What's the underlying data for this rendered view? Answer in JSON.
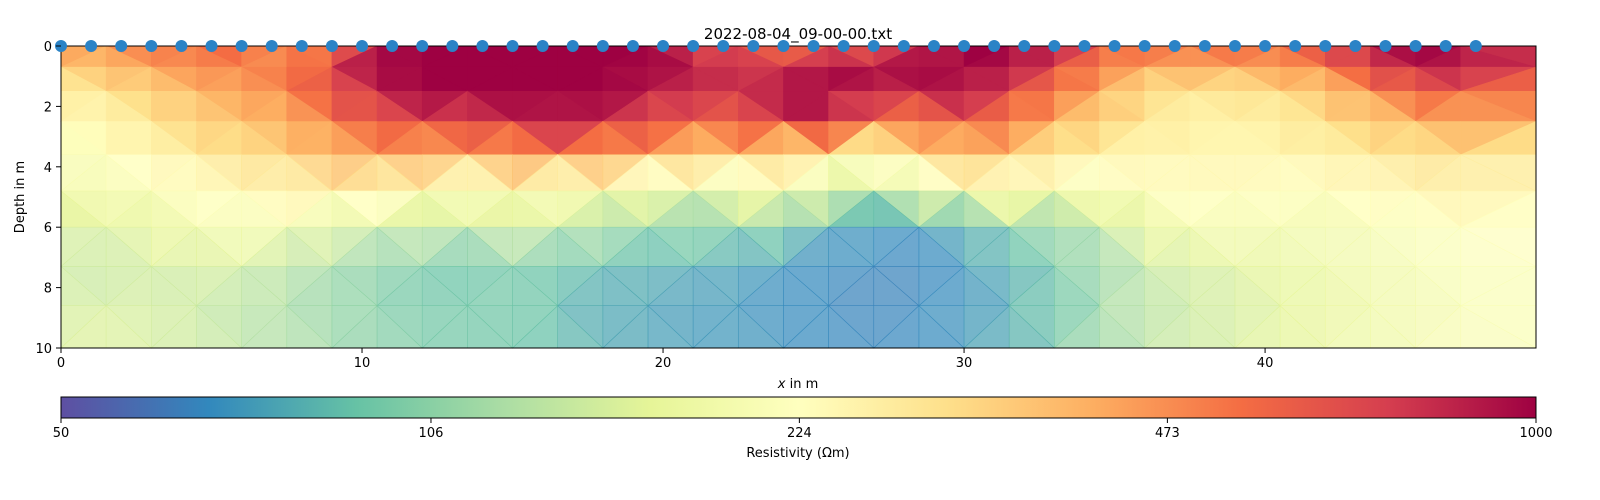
{
  "chart_data": {
    "type": "heatmap",
    "title": "2022-08-04_09-00-00.txt",
    "xlabel_italic": "x",
    "xlabel_rest": " in m",
    "ylabel": "Depth in m",
    "xlim": [
      0,
      49
    ],
    "ylim": [
      0,
      10
    ],
    "x_ticks": [
      0,
      10,
      20,
      30,
      40
    ],
    "y_ticks": [
      0,
      2,
      4,
      6,
      8,
      10
    ],
    "y_inverted": true,
    "electrodes": {
      "count": 48,
      "spacing": 1,
      "x_start": 0,
      "color": "#2b83c6"
    },
    "colorbar": {
      "label": "Resistivity (Ωm)",
      "scale": "log",
      "range": [
        50,
        1000
      ],
      "ticks": [
        50,
        106,
        224,
        473,
        1000
      ],
      "colormap": "Spectral_r",
      "stops": [
        "#5e4fa2",
        "#3288bd",
        "#66c2a5",
        "#abdda4",
        "#e6f598",
        "#ffffbf",
        "#fee08b",
        "#fdae61",
        "#f46d43",
        "#d53e4f",
        "#9e0142"
      ]
    },
    "depth_rows": [
      0,
      0.7,
      1.5,
      2.5,
      3.6,
      4.8,
      6.0,
      7.3,
      8.6,
      10.0
    ],
    "x_columns": [
      0,
      1.5,
      3,
      4.5,
      6,
      7.5,
      9,
      10.5,
      12,
      13.5,
      15,
      16.5,
      18,
      19.5,
      21,
      22.5,
      24,
      25.5,
      27,
      28.5,
      30,
      31.5,
      33,
      34.5,
      36,
      37.5,
      39,
      40.5,
      42,
      43.5,
      45,
      46.5,
      49
    ],
    "resistivity_grid": [
      [
        450,
        480,
        520,
        560,
        600,
        420,
        500,
        900,
        1000,
        1000,
        1000,
        1000,
        1000,
        1000,
        700,
        600,
        520,
        560,
        620,
        750,
        1000,
        1000,
        900,
        650,
        520,
        600,
        550,
        580,
        700,
        900,
        1000,
        1000,
        750
      ],
      [
        330,
        370,
        420,
        480,
        500,
        520,
        700,
        1000,
        1000,
        1000,
        1000,
        1000,
        1000,
        950,
        900,
        780,
        800,
        900,
        950,
        1000,
        1000,
        900,
        700,
        480,
        420,
        400,
        420,
        440,
        520,
        700,
        900,
        850,
        700
      ],
      [
        260,
        290,
        330,
        380,
        430,
        480,
        620,
        850,
        1000,
        1000,
        1000,
        1000,
        1000,
        900,
        780,
        750,
        900,
        1000,
        800,
        850,
        900,
        700,
        520,
        400,
        300,
        280,
        290,
        300,
        350,
        450,
        600,
        620,
        500
      ],
      [
        225,
        240,
        280,
        330,
        360,
        390,
        520,
        600,
        700,
        700,
        800,
        950,
        800,
        650,
        600,
        600,
        800,
        900,
        520,
        480,
        650,
        500,
        400,
        330,
        280,
        250,
        250,
        260,
        300,
        340,
        380,
        420,
        380
      ],
      [
        210,
        220,
        240,
        270,
        300,
        320,
        380,
        420,
        430,
        380,
        460,
        470,
        440,
        400,
        360,
        320,
        290,
        250,
        230,
        300,
        360,
        340,
        280,
        250,
        240,
        240,
        240,
        240,
        250,
        270,
        290,
        300,
        260
      ],
      [
        190,
        200,
        210,
        230,
        250,
        260,
        280,
        270,
        230,
        210,
        230,
        210,
        205,
        180,
        175,
        170,
        240,
        150,
        140,
        170,
        230,
        220,
        200,
        210,
        230,
        240,
        240,
        230,
        230,
        240,
        250,
        260,
        240
      ],
      [
        150,
        160,
        170,
        190,
        200,
        190,
        160,
        150,
        140,
        135,
        150,
        140,
        120,
        110,
        100,
        105,
        100,
        75,
        70,
        70,
        80,
        100,
        110,
        130,
        170,
        190,
        200,
        190,
        190,
        200,
        210,
        220,
        220
      ],
      [
        140,
        140,
        145,
        150,
        150,
        130,
        115,
        105,
        95,
        90,
        100,
        90,
        85,
        80,
        80,
        75,
        70,
        68,
        65,
        65,
        70,
        80,
        95,
        110,
        140,
        150,
        160,
        170,
        180,
        190,
        200,
        210,
        220
      ],
      [
        150,
        150,
        150,
        140,
        130,
        120,
        110,
        100,
        95,
        90,
        95,
        85,
        78,
        75,
        72,
        70,
        68,
        66,
        65,
        66,
        70,
        78,
        90,
        110,
        130,
        140,
        150,
        160,
        170,
        180,
        190,
        200,
        210
      ],
      [
        160,
        160,
        155,
        145,
        135,
        125,
        115,
        105,
        100,
        95,
        98,
        88,
        80,
        76,
        74,
        72,
        70,
        68,
        66,
        68,
        72,
        80,
        95,
        115,
        135,
        145,
        155,
        165,
        175,
        185,
        195,
        205,
        215
      ]
    ]
  }
}
